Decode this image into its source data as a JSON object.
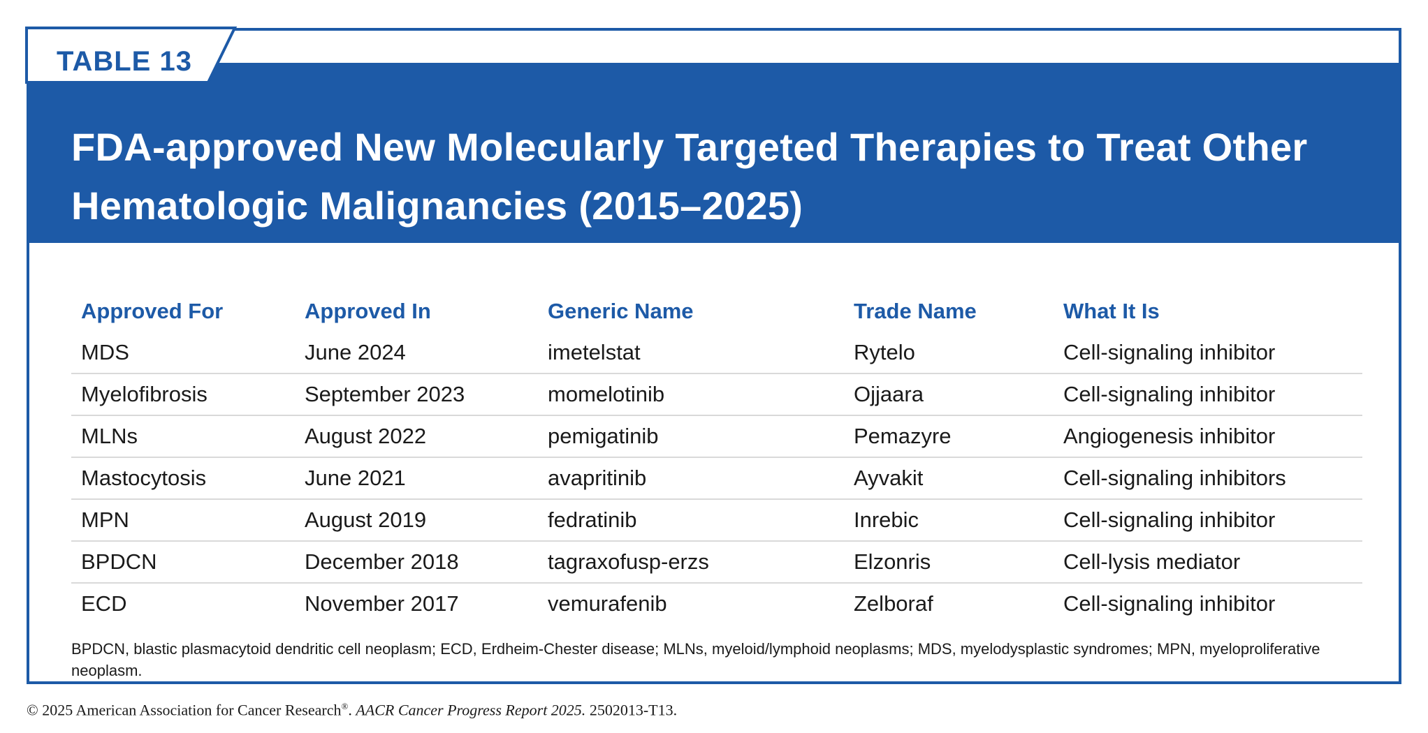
{
  "table_label": "TABLE 13",
  "title": "FDA-approved New Molecularly Targeted Therapies to Treat Other Hematologic Malignancies (2015–2025)",
  "columns": [
    "Approved For",
    "Approved In",
    "Generic Name",
    "Trade Name",
    "What It Is"
  ],
  "rows": [
    [
      "MDS",
      "June 2024",
      "imetelstat",
      "Rytelo",
      "Cell-signaling inhibitor"
    ],
    [
      "Myelofibrosis",
      "September 2023",
      "momelotinib",
      "Ojjaara",
      "Cell-signaling inhibitor"
    ],
    [
      "MLNs",
      "August 2022",
      "pemigatinib",
      "Pemazyre",
      "Angiogenesis inhibitor"
    ],
    [
      "Mastocytosis",
      "June 2021",
      "avapritinib",
      "Ayvakit",
      "Cell-signaling inhibitors"
    ],
    [
      "MPN",
      "August 2019",
      "fedratinib",
      "Inrebic",
      "Cell-signaling inhibitor"
    ],
    [
      "BPDCN",
      "December 2018",
      "tagraxofusp-erzs",
      "Elzonris",
      "Cell-lysis mediator"
    ],
    [
      "ECD",
      "November 2017",
      "vemurafenib",
      "Zelboraf",
      "Cell-signaling inhibitor"
    ]
  ],
  "footnote": "BPDCN, blastic plasmacytoid dendritic cell neoplasm; ECD, Erdheim-Chester disease; MLNs, myeloid/lymphoid neoplasms; MDS, myelodysplastic syndromes; MPN, myeloproliferative neoplasm.",
  "copyright": {
    "prefix": "© 2025 American Association for Cancer Research",
    "registered_mark": "®",
    "separator": ". ",
    "report": "AACR Cancer Progress Report 2025.",
    "code": " 2502013-T13."
  },
  "colors": {
    "brand_blue": "#1d5aa7",
    "rule_gray": "#d9d9d9",
    "text": "#1a1a1a",
    "background": "#ffffff"
  }
}
